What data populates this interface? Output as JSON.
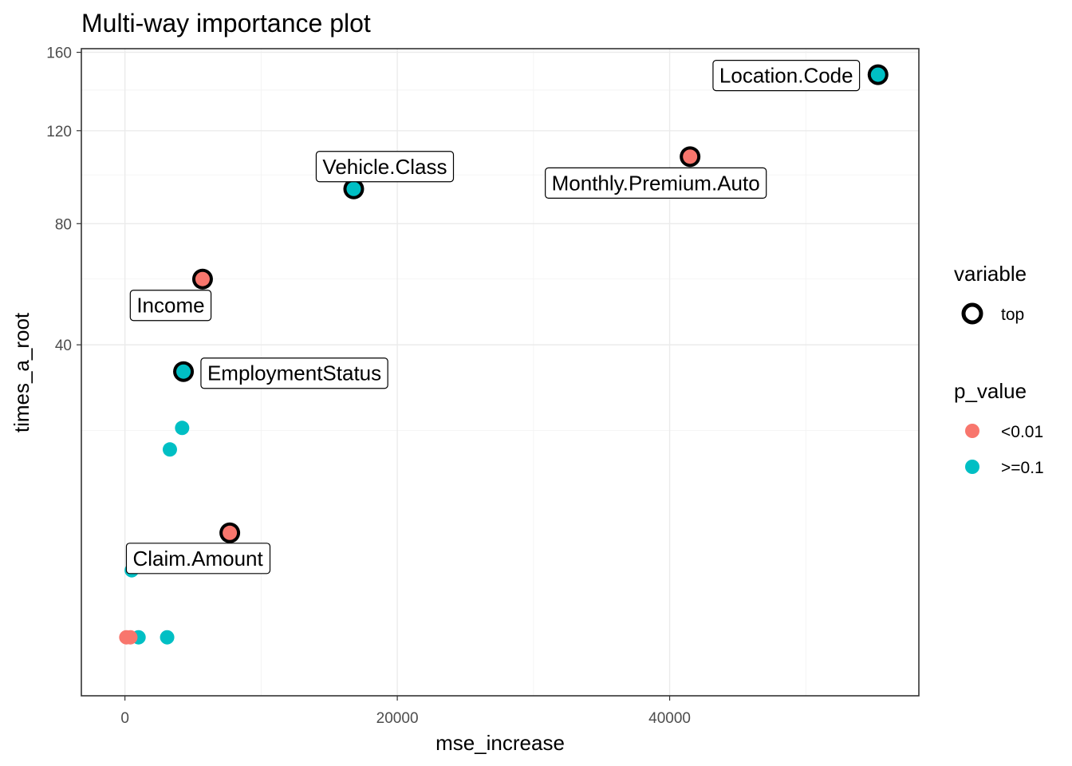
{
  "chart_data": {
    "type": "scatter",
    "title": "Multi-way importance plot",
    "xlabel": "mse_increase",
    "ylabel": "times_a_root",
    "x_scale": "linear",
    "y_scale": "sqrt",
    "xlim": [
      -3200,
      58300
    ],
    "ylim": [
      -1.6,
      162
    ],
    "x_ticks": [
      0,
      20000,
      40000
    ],
    "x_tick_labels": [
      "0",
      "20000",
      "40000"
    ],
    "y_ticks": [
      40,
      80,
      120,
      160
    ],
    "y_tick_labels": [
      "40",
      "80",
      "120",
      "160"
    ],
    "grid": true,
    "legend_position": "right",
    "colors": {
      "lt001": "#F8766D",
      "ge01": "#00BFC4",
      "outline": "#000000"
    },
    "legend": {
      "variable": {
        "title": "variable",
        "items": [
          {
            "label": "top",
            "shape": "ring"
          }
        ]
      },
      "p_value": {
        "title": "p_value",
        "items": [
          {
            "label": "<0.01",
            "color": "#F8766D"
          },
          {
            "label": ">=0.1",
            "color": "#00BFC4"
          }
        ]
      }
    },
    "points": [
      {
        "label": "Location.Code",
        "x": 55300,
        "y": 148,
        "p_value": ">=0.1",
        "top": true
      },
      {
        "label": "Monthly.Premium.Auto",
        "x": 41500,
        "y": 108,
        "p_value": "<0.01",
        "top": true
      },
      {
        "label": "Vehicle.Class",
        "x": 16800,
        "y": 94,
        "p_value": ">=0.1",
        "top": true
      },
      {
        "label": "Income",
        "x": 5700,
        "y": 60,
        "p_value": "<0.01",
        "top": true
      },
      {
        "label": "EmploymentStatus",
        "x": 4300,
        "y": 33,
        "p_value": ">=0.1",
        "top": true
      },
      {
        "label": "Claim.Amount",
        "x": 7700,
        "y": 5.1,
        "p_value": "<0.01",
        "top": true
      },
      {
        "label": "",
        "x": 4200,
        "y": 20.5,
        "p_value": ">=0.1",
        "top": false
      },
      {
        "label": "",
        "x": 3300,
        "y": 16.5,
        "p_value": ">=0.1",
        "top": false
      },
      {
        "label": "",
        "x": 500,
        "y": 2.1,
        "p_value": ">=0.1",
        "top": false
      },
      {
        "label": "",
        "x": 1000,
        "y": 0,
        "p_value": ">=0.1",
        "top": false
      },
      {
        "label": "",
        "x": 3100,
        "y": 0,
        "p_value": ">=0.1",
        "top": false
      },
      {
        "label": "",
        "x": 100,
        "y": 0,
        "p_value": "<0.01",
        "top": false
      },
      {
        "label": "",
        "x": 400,
        "y": 0,
        "p_value": "<0.01",
        "top": false
      }
    ]
  }
}
